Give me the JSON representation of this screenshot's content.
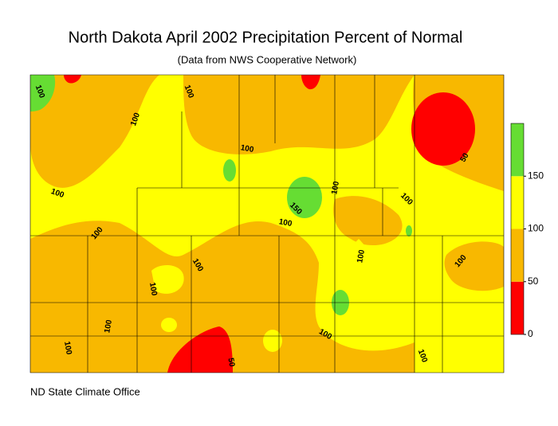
{
  "title": "North Dakota April 2002 Precipitation Percent of Normal",
  "subtitle": "(Data from NWS Cooperative Network)",
  "legend": {
    "limits": [
      0,
      200
    ],
    "ticks": [
      0,
      50,
      100,
      150
    ],
    "colors": [
      "#ff0000",
      "#f8b800",
      "#ffff00",
      "#66dd33"
    ]
  },
  "contour_labels": [
    "100",
    "100",
    "100",
    "100",
    "100",
    "100",
    "100",
    "100",
    "100",
    "100",
    "100",
    "100",
    "100",
    "100",
    "100",
    "100",
    "100",
    "150",
    "50",
    "50"
  ],
  "footer": "ND State Climate Office"
}
